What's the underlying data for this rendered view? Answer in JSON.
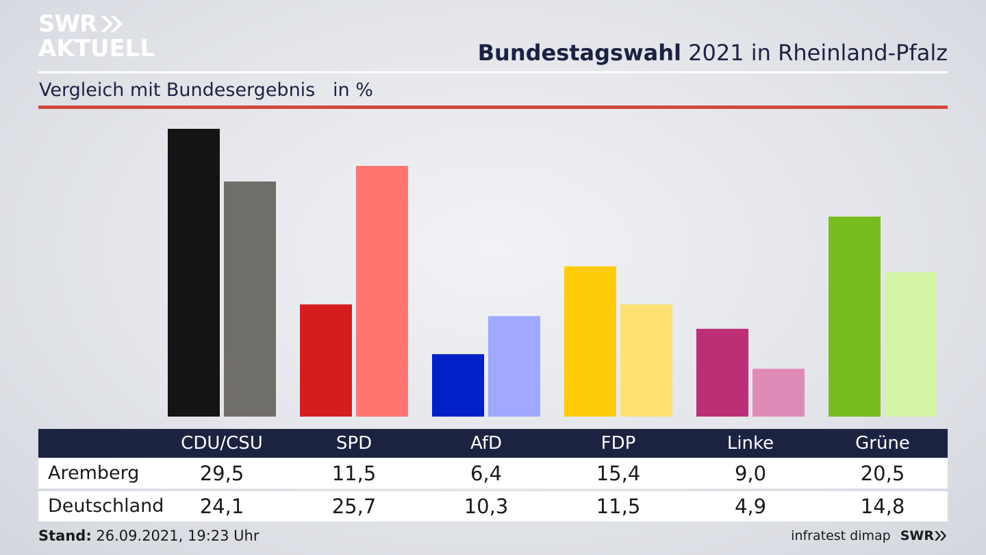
{
  "brand": {
    "line1": "SWR",
    "line2": "AKTUELL"
  },
  "header": {
    "title_bold": "Bundestagswahl",
    "title_rest": " 2021 in Rheinland-Pfalz",
    "subtitle": "Vergleich mit Bundesergebnis   in %"
  },
  "chart_data": {
    "type": "bar",
    "categories": [
      "CDU/CSU",
      "SPD",
      "AfD",
      "FDP",
      "Linke",
      "Grüne"
    ],
    "series": [
      {
        "name": "Aremberg",
        "values": [
          29.5,
          11.5,
          6.4,
          15.4,
          9.0,
          20.5
        ]
      },
      {
        "name": "Deutschland",
        "values": [
          24.1,
          25.7,
          10.3,
          11.5,
          4.9,
          14.8
        ]
      }
    ],
    "colors": [
      [
        "#141414",
        "#706e6b"
      ],
      [
        "#d41e1e",
        "#ff7570"
      ],
      [
        "#0020c8",
        "#9ea9ff"
      ],
      [
        "#ffcc0a",
        "#fee073"
      ],
      [
        "#bc2f76",
        "#e08ab8"
      ],
      [
        "#77bc1f",
        "#d5f5a6"
      ]
    ],
    "ylim": [
      0,
      29.5
    ],
    "grid": false
  },
  "table": {
    "rows": [
      {
        "label": "Aremberg",
        "values": [
          "29,5",
          "11,5",
          "6,4",
          "15,4",
          "9,0",
          "20,5"
        ]
      },
      {
        "label": "Deutschland",
        "values": [
          "24,1",
          "25,7",
          "10,3",
          "11,5",
          "4,9",
          "14,8"
        ]
      }
    ]
  },
  "footer": {
    "stand_label": "Stand:",
    "stand_value": " 26.09.2021, 19:23 Uhr",
    "source": "infratest dimap",
    "brand": "SWR"
  }
}
